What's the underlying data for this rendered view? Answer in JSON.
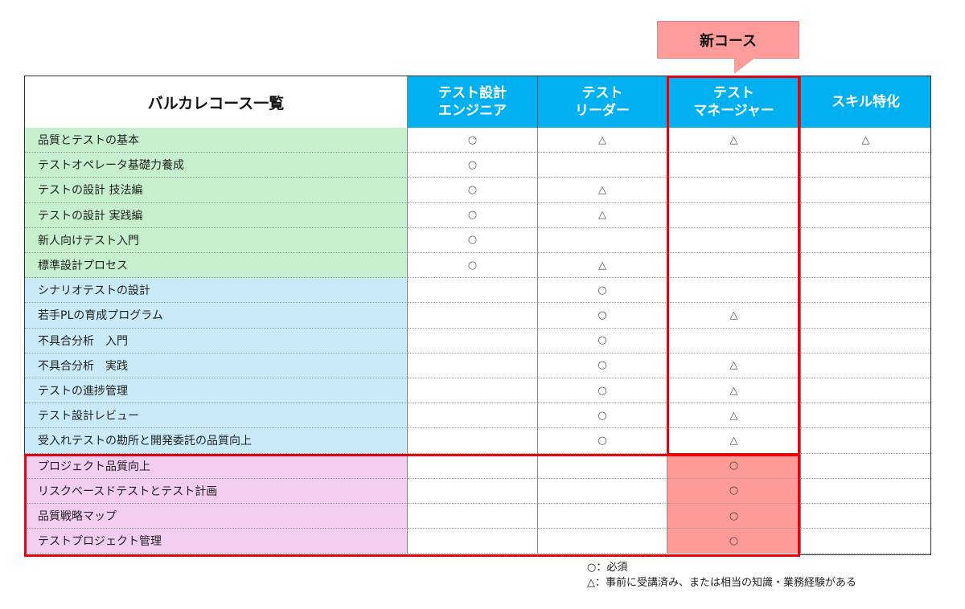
{
  "callout": {
    "label": "新コース",
    "color": "#ff9b9b"
  },
  "table": {
    "title": "バルカレコース一覧",
    "columns": [
      {
        "label": "テスト設計\nエンジニア"
      },
      {
        "label": "テスト\nリーダー"
      },
      {
        "label": "テスト\nマネージャー"
      },
      {
        "label": "スキル特化"
      }
    ],
    "header_color": "#00b0f0",
    "rows": [
      {
        "name": "品質とテストの基本",
        "group": "green",
        "marks": [
          "○",
          "△",
          "△",
          "△"
        ]
      },
      {
        "name": "テストオペレータ基礎力養成",
        "group": "green",
        "marks": [
          "○",
          "",
          "",
          ""
        ]
      },
      {
        "name": "テストの設計 技法編",
        "group": "green",
        "marks": [
          "○",
          "△",
          "",
          ""
        ]
      },
      {
        "name": "テストの設計 実践編",
        "group": "green",
        "marks": [
          "○",
          "△",
          "",
          ""
        ]
      },
      {
        "name": "新人向けテスト入門",
        "group": "green",
        "marks": [
          "○",
          "",
          "",
          ""
        ]
      },
      {
        "name": "標準設計プロセス",
        "group": "green",
        "marks": [
          "○",
          "△",
          "",
          ""
        ]
      },
      {
        "name": "シナリオテストの設計",
        "group": "blue",
        "marks": [
          "",
          "○",
          "",
          ""
        ]
      },
      {
        "name": "若手PLの育成プログラム",
        "group": "blue",
        "marks": [
          "",
          "○",
          "△",
          ""
        ]
      },
      {
        "name": "不具合分析　入門",
        "group": "blue",
        "marks": [
          "",
          "○",
          "",
          ""
        ]
      },
      {
        "name": "不具合分析　実践",
        "group": "blue",
        "marks": [
          "",
          "○",
          "△",
          ""
        ]
      },
      {
        "name": "テストの進捗管理",
        "group": "blue",
        "marks": [
          "",
          "○",
          "△",
          ""
        ]
      },
      {
        "name": "テスト設計レビュー",
        "group": "blue",
        "marks": [
          "",
          "○",
          "△",
          ""
        ]
      },
      {
        "name": "受入れテストの勘所と開発委託の品質向上",
        "group": "blue",
        "marks": [
          "",
          "○",
          "△",
          ""
        ]
      },
      {
        "name": "プロジェクト品質向上",
        "group": "pink",
        "marks": [
          "",
          "",
          "○",
          ""
        ],
        "new": true
      },
      {
        "name": "リスクベースドテストとテスト計画",
        "group": "pink",
        "marks": [
          "",
          "",
          "○",
          ""
        ],
        "new": true
      },
      {
        "name": "品質戦略マップ",
        "group": "pink",
        "marks": [
          "",
          "",
          "○",
          ""
        ],
        "new": true
      },
      {
        "name": "テストプロジェクト管理",
        "group": "pink",
        "marks": [
          "",
          "",
          "○",
          ""
        ],
        "new": true
      }
    ]
  },
  "legend": {
    "required": "○：必須",
    "prerequisite": "△：事前に受講済み、または相当の知識・業務経験がある"
  },
  "colors": {
    "group_green": "#c6efce",
    "group_blue": "#c9eaf8",
    "group_pink": "#f2cdf0",
    "highlight_red": "#e8000d",
    "new_cell": "#ff9b96"
  }
}
